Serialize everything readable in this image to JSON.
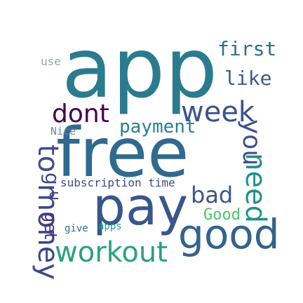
{
  "words": [
    {
      "text": "app",
      "color": "#2a7b8e"
    },
    {
      "text": "free",
      "color": "#306a8e"
    },
    {
      "text": "pay",
      "color": "#39568c"
    },
    {
      "text": "good",
      "color": "#33638d"
    },
    {
      "text": "workout",
      "color": "#2ba07f"
    },
    {
      "text": "money",
      "color": "#3f4788"
    },
    {
      "text": "need",
      "color": "#21908c"
    },
    {
      "text": "week",
      "color": "#3b528b"
    },
    {
      "text": "dont",
      "color": "#440154"
    },
    {
      "text": "first",
      "color": "#2d708e"
    },
    {
      "text": "payment",
      "color": "#27808e"
    },
    {
      "text": "like",
      "color": "#355f8d"
    },
    {
      "text": "use",
      "color": "#95a5a6"
    },
    {
      "text": "Nice",
      "color": "#6e8aa0"
    },
    {
      "text": "bad",
      "color": "#3a548c"
    },
    {
      "text": "Good",
      "color": "#4ec36b"
    },
    {
      "text": "subscription time",
      "color": "#3e4a89"
    },
    {
      "text": "give",
      "color": "#2e6e8e"
    },
    {
      "text": "apps",
      "color": "#1f9e89"
    },
    {
      "text": "you",
      "color": "#3b528b"
    },
    {
      "text": "to",
      "color": "#3d4e8a"
    },
    {
      "text": "g",
      "color": "#3f4889"
    },
    {
      "text": "u",
      "color": "#404588"
    },
    {
      "text": "get",
      "color": "#46327e"
    }
  ]
}
